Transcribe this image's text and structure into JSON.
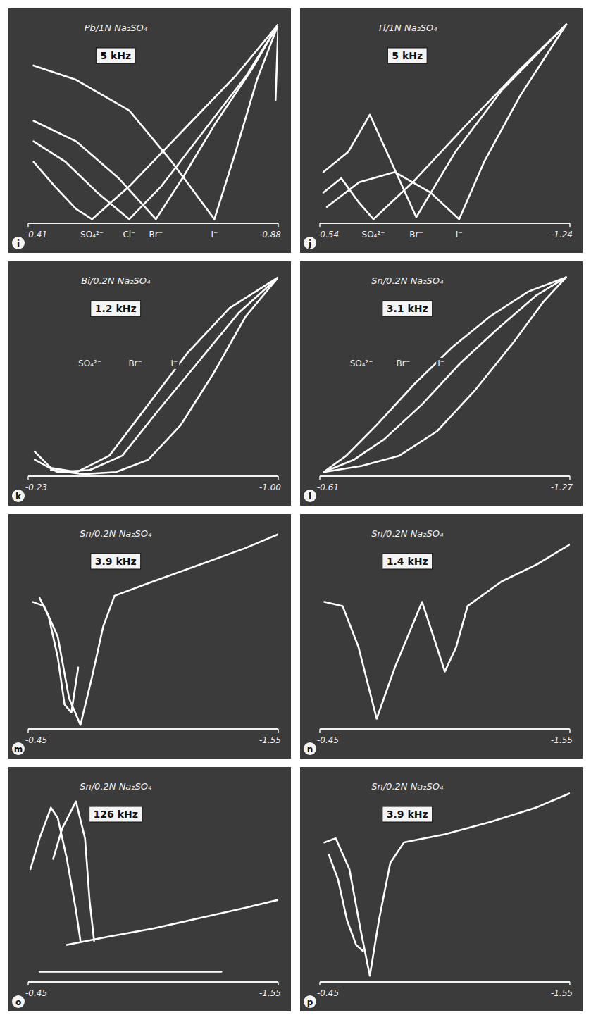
{
  "chart_data": [
    {
      "type": "line",
      "title": "Pb/1N Na₂SO₄",
      "subtitle": "5 kHz",
      "panel_label": "i",
      "xlim": [
        -0.41,
        -0.88
      ],
      "xticks": [
        -0.41,
        -0.88
      ],
      "ylim": [
        0,
        100
      ],
      "tick_labels": "x",
      "grid": false,
      "annotations": [
        {
          "text": "SO₄²⁻",
          "x": -0.53
        },
        {
          "text": "Cl⁻",
          "x": -0.6
        },
        {
          "text": "Br⁻",
          "x": -0.65
        },
        {
          "text": "I⁻",
          "x": -0.76
        }
      ],
      "series": [
        {
          "color": "#ffffff",
          "x": [
            -0.42,
            -0.46,
            -0.5,
            -0.53,
            -0.6,
            -0.7,
            -0.8,
            -0.88
          ],
          "values": [
            30,
            18,
            7,
            2,
            18,
            45,
            72,
            97
          ]
        },
        {
          "color": "#ffffff",
          "x": [
            -0.42,
            -0.48,
            -0.54,
            -0.6,
            -0.66,
            -0.74,
            -0.82,
            -0.88
          ],
          "values": [
            40,
            30,
            15,
            2,
            18,
            45,
            72,
            97
          ]
        },
        {
          "color": "#ffffff",
          "x": [
            -0.42,
            -0.5,
            -0.58,
            -0.65,
            -0.7,
            -0.76,
            -0.83,
            -0.88
          ],
          "values": [
            50,
            40,
            22,
            2,
            22,
            48,
            75,
            97
          ]
        },
        {
          "color": "#ffffff",
          "x": [
            -0.42,
            -0.5,
            -0.6,
            -0.68,
            -0.76,
            -0.8,
            -0.84,
            -0.88
          ],
          "values": [
            77,
            70,
            55,
            30,
            2,
            35,
            70,
            97
          ]
        },
        {
          "color": "#ffffff",
          "x": [
            -0.88,
            -0.875
          ],
          "values": [
            97,
            60
          ]
        }
      ]
    },
    {
      "type": "line",
      "title": "Tl/1N Na₂SO₄",
      "subtitle": "5 kHz",
      "panel_label": "j",
      "xlim": [
        -0.54,
        -1.24
      ],
      "xticks": [
        -0.54,
        -1.24
      ],
      "ylim": [
        0,
        100
      ],
      "tick_labels": "x",
      "grid": false,
      "annotations": [
        {
          "text": "SO₄²⁻",
          "x": -0.69
        },
        {
          "text": "Br⁻",
          "x": -0.81
        },
        {
          "text": "I⁻",
          "x": -0.93
        }
      ],
      "series": [
        {
          "color": "#ffffff",
          "x": [
            -0.55,
            -0.6,
            -0.65,
            -0.69,
            -0.8,
            -0.95,
            -1.1,
            -1.23
          ],
          "values": [
            15,
            22,
            10,
            2,
            20,
            48,
            75,
            97
          ]
        },
        {
          "color": "#ffffff",
          "x": [
            -0.55,
            -0.62,
            -0.68,
            -0.74,
            -0.81,
            -0.92,
            -1.05,
            -1.23
          ],
          "values": [
            25,
            35,
            53,
            30,
            3,
            35,
            65,
            97
          ]
        },
        {
          "color": "#ffffff",
          "x": [
            -0.56,
            -0.65,
            -0.75,
            -0.85,
            -0.93,
            -1.0,
            -1.1,
            -1.23
          ],
          "values": [
            8,
            20,
            25,
            15,
            2,
            30,
            62,
            97
          ]
        }
      ]
    },
    {
      "type": "line",
      "title": "Bi/0.2N Na₂SO₄",
      "subtitle": "1.2 kHz",
      "panel_label": "k",
      "xlim": [
        -0.23,
        -1.0
      ],
      "xticks": [
        -0.23,
        {
          "value": -1.0,
          "label": "-1.00"
        }
      ],
      "ylim": [
        0,
        100
      ],
      "tick_labels": "x",
      "grid": false,
      "annotations": [
        {
          "text": "SO₄²⁻",
          "x": -0.42,
          "y": 55
        },
        {
          "text": "Br⁻",
          "x": -0.56,
          "y": 55
        },
        {
          "text": "I⁻",
          "x": -0.68,
          "y": 55
        }
      ],
      "series": [
        {
          "color": "#ffffff",
          "x": [
            -0.25,
            -0.3,
            -0.38,
            -0.48,
            -0.6,
            -0.72,
            -0.85,
            -1.0
          ],
          "values": [
            12,
            4,
            2,
            10,
            35,
            60,
            82,
            97
          ]
        },
        {
          "color": "#ffffff",
          "x": [
            -0.25,
            -0.32,
            -0.42,
            -0.52,
            -0.62,
            -0.75,
            -0.88,
            -1.0
          ],
          "values": [
            8,
            2,
            3,
            10,
            30,
            55,
            80,
            97
          ]
        },
        {
          "color": "#ffffff",
          "x": [
            -0.3,
            -0.4,
            -0.5,
            -0.6,
            -0.7,
            -0.8,
            -0.9,
            -1.0
          ],
          "values": [
            3,
            1,
            2,
            8,
            25,
            50,
            78,
            97
          ]
        }
      ]
    },
    {
      "type": "line",
      "title": "Sn/0.2N Na₂SO₄",
      "subtitle": "3.1 kHz",
      "panel_label": "l",
      "xlim": [
        -0.61,
        -1.27
      ],
      "xticks": [
        -0.61,
        -1.27
      ],
      "ylim": [
        0,
        100
      ],
      "tick_labels": "x",
      "grid": false,
      "annotations": [
        {
          "text": "SO₄²⁻",
          "x": -0.72,
          "y": 55
        },
        {
          "text": "Br⁻",
          "x": -0.83,
          "y": 55
        },
        {
          "text": "I⁻",
          "x": -0.93,
          "y": 55
        }
      ],
      "series": [
        {
          "color": "#ffffff",
          "x": [
            -0.62,
            -0.68,
            -0.76,
            -0.86,
            -0.96,
            -1.06,
            -1.16,
            -1.26
          ],
          "values": [
            2,
            10,
            25,
            45,
            63,
            78,
            90,
            97
          ]
        },
        {
          "color": "#ffffff",
          "x": [
            -0.62,
            -0.7,
            -0.78,
            -0.88,
            -0.98,
            -1.08,
            -1.18,
            -1.26
          ],
          "values": [
            2,
            8,
            18,
            35,
            55,
            72,
            88,
            97
          ]
        },
        {
          "color": "#ffffff",
          "x": [
            -0.62,
            -0.72,
            -0.82,
            -0.92,
            -1.02,
            -1.12,
            -1.2,
            -1.26
          ],
          "values": [
            2,
            5,
            10,
            22,
            42,
            65,
            85,
            97
          ]
        }
      ]
    },
    {
      "type": "line",
      "title": "Sn/0.2N Na₂SO₄",
      "subtitle": "3.9 kHz",
      "panel_label": "m",
      "xlim": [
        -0.45,
        -1.55
      ],
      "xticks": [
        -0.45,
        -1.55
      ],
      "ylim": [
        0,
        100
      ],
      "tick_labels": "x",
      "grid": false,
      "series": [
        {
          "color": "#ffffff",
          "x": [
            -0.47,
            -0.52,
            -0.58,
            -0.63,
            -0.68,
            -0.73,
            -0.78,
            -0.83,
            -1.0,
            -1.2,
            -1.4,
            -1.55
          ],
          "values": [
            62,
            60,
            45,
            15,
            2,
            25,
            50,
            65,
            72,
            80,
            88,
            95
          ]
        },
        {
          "color": "#ffffff",
          "x": [
            -0.5,
            -0.54,
            -0.58,
            -0.61,
            -0.64,
            -0.67
          ],
          "values": [
            64,
            55,
            35,
            12,
            8,
            30
          ]
        }
      ]
    },
    {
      "type": "line",
      "title": "Sn/0.2N Na₂SO₄",
      "subtitle": "1.4 kHz",
      "panel_label": "n",
      "xlim": [
        -0.45,
        -1.55
      ],
      "xticks": [
        -0.45,
        -1.55
      ],
      "ylim": [
        0,
        100
      ],
      "tick_labels": "x",
      "grid": false,
      "series": [
        {
          "color": "#ffffff",
          "x": [
            -0.47,
            -0.55,
            -0.62,
            -0.7,
            -0.78,
            -0.9,
            -0.95,
            -1.0,
            -1.05,
            -1.1,
            -1.25,
            -1.4,
            -1.55
          ],
          "values": [
            62,
            60,
            40,
            5,
            30,
            62,
            45,
            28,
            40,
            60,
            72,
            80,
            90
          ]
        }
      ]
    },
    {
      "type": "line",
      "title": "Sn/0.2N Na₂SO₄",
      "subtitle": "126 kHz",
      "panel_label": "o",
      "xlim": [
        -0.45,
        -1.55
      ],
      "xticks": [
        -0.45,
        -1.55
      ],
      "ylim": [
        0,
        100
      ],
      "tick_labels": "x",
      "grid": false,
      "series": [
        {
          "color": "#ffffff",
          "x": [
            -0.46,
            -0.5,
            -0.55,
            -0.58,
            -0.62,
            -0.66,
            -0.68
          ],
          "values": [
            55,
            70,
            85,
            80,
            60,
            35,
            20
          ]
        },
        {
          "color": "#ffffff",
          "x": [
            -0.56,
            -0.6,
            -0.66,
            -0.7,
            -0.72,
            -0.74
          ],
          "values": [
            60,
            75,
            88,
            70,
            40,
            20
          ]
        },
        {
          "color": "#ffffff",
          "x": [
            -0.62,
            -0.8,
            -1.0,
            -1.2,
            -1.4,
            -1.55
          ],
          "values": [
            18,
            22,
            26,
            31,
            36,
            40
          ]
        },
        {
          "color": "#ffffff",
          "x": [
            -0.5,
            -1.3
          ],
          "values": [
            5,
            5
          ]
        }
      ]
    },
    {
      "type": "line",
      "title": "Sn/0.2N Na₂SO₄",
      "subtitle": "3.9 kHz",
      "panel_label": "p",
      "xlim": [
        -0.45,
        -1.55
      ],
      "xticks": [
        -0.45,
        -1.55
      ],
      "ylim": [
        0,
        100
      ],
      "tick_labels": "x",
      "grid": false,
      "series": [
        {
          "color": "#ffffff",
          "x": [
            -0.47,
            -0.52,
            -0.58,
            -0.63,
            -0.67,
            -0.71,
            -0.76,
            -0.82,
            -1.0,
            -1.2,
            -1.4,
            -1.55
          ],
          "values": [
            68,
            70,
            55,
            25,
            3,
            30,
            58,
            68,
            72,
            78,
            85,
            92
          ]
        },
        {
          "color": "#ffffff",
          "x": [
            -0.49,
            -0.53,
            -0.57,
            -0.61,
            -0.64
          ],
          "values": [
            62,
            50,
            30,
            18,
            15
          ]
        }
      ]
    }
  ]
}
